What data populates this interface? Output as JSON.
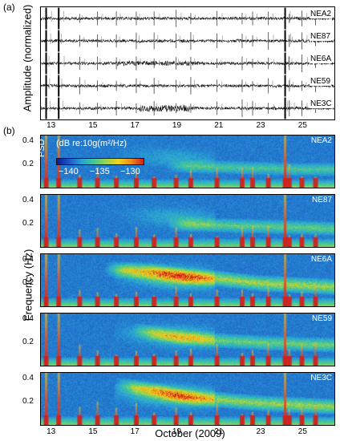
{
  "figure": {
    "panel_a_label": "(a)",
    "panel_b_label": "(b)",
    "panel_a_ylabel": "Amplitude (normalized)",
    "panel_b_ylabel": "Frequency (Hz)",
    "xlabel": "October (2009)",
    "colorbar": {
      "title_prefix": "PSD",
      "title": "(dB re:10g(m²/Hz)",
      "ticks": [
        "−140",
        "−135",
        "−130"
      ],
      "colors": [
        "#0d1b8f",
        "#1f57c7",
        "#29a3d6",
        "#44c79a",
        "#9bd44a",
        "#f1d21f",
        "#f08a1b",
        "#d1201b"
      ]
    }
  },
  "chart_data": [
    {
      "type": "line",
      "title": "",
      "panel": "(a)",
      "ylabel": "Amplitude (normalized)",
      "xlabel": "",
      "xlim": [
        12.5,
        26.5
      ],
      "x_ticks": [
        "13",
        "15",
        "17",
        "19",
        "21",
        "23",
        "25"
      ],
      "series": [
        {
          "name": "NEA2",
          "transient_days": [
            12.75,
            13.35,
            14.35,
            15.2,
            16.1,
            17.05,
            17.9,
            18.95,
            19.65,
            20.9,
            22.1,
            22.6,
            23.35,
            24.15,
            24.35,
            24.95,
            25.6
          ]
        },
        {
          "name": "NE87",
          "transient_days": [
            12.75,
            13.35,
            14.35,
            15.2,
            16.1,
            17.05,
            17.9,
            18.95,
            19.65,
            20.9,
            22.1,
            22.6,
            23.35,
            24.15,
            24.35,
            24.95,
            25.6
          ]
        },
        {
          "name": "NE6A",
          "transient_days": [
            12.75,
            13.35,
            14.35,
            15.2,
            16.1,
            17.05,
            17.9,
            18.95,
            19.65,
            20.9,
            22.1,
            22.6,
            23.35,
            24.15,
            24.35,
            24.95,
            25.6
          ]
        },
        {
          "name": "NE59",
          "transient_days": [
            12.75,
            13.35,
            14.35,
            15.2,
            16.1,
            17.05,
            17.9,
            18.95,
            19.65,
            20.9,
            22.1,
            22.6,
            23.35,
            24.15,
            24.35,
            24.95,
            25.6
          ]
        },
        {
          "name": "NE3C",
          "transient_days": [
            12.75,
            13.35,
            14.35,
            15.2,
            16.1,
            17.05,
            17.9,
            18.95,
            19.65,
            20.9,
            22.1,
            22.6,
            23.35,
            24.15,
            24.35,
            24.95,
            25.6
          ]
        }
      ]
    },
    {
      "type": "heatmap",
      "title": "",
      "panel": "(b)",
      "xlabel": "October (2009)",
      "ylabel": "Frequency (Hz)",
      "xlim": [
        12.5,
        26.5
      ],
      "ylim": [
        0,
        0.45
      ],
      "x_ticks": [
        "13",
        "15",
        "17",
        "19",
        "21",
        "23",
        "25"
      ],
      "y_ticks": [
        "0.2",
        "0.4"
      ],
      "colorbar_range_db": [
        -142,
        -129
      ],
      "stations": [
        {
          "name": "NEA2",
          "microseism_band": [
            {
              "day": 19.0,
              "hz": 0.19
            },
            {
              "day": 21.0,
              "hz": 0.18
            },
            {
              "day": 23.0,
              "hz": 0.17
            },
            {
              "day": 25.0,
              "hz": 0.16
            },
            {
              "day": 26.5,
              "hz": 0.16
            }
          ],
          "microseism_intensity": 0.45,
          "storm_intensity": 0.2
        },
        {
          "name": "NE87",
          "microseism_band": [
            {
              "day": 19.0,
              "hz": 0.2
            },
            {
              "day": 21.0,
              "hz": 0.19
            },
            {
              "day": 23.0,
              "hz": 0.18
            },
            {
              "day": 25.0,
              "hz": 0.17
            },
            {
              "day": 26.5,
              "hz": 0.16
            }
          ],
          "microseism_intensity": 0.55,
          "storm_intensity": 0.25
        },
        {
          "name": "NE6A",
          "microseism_band": [
            {
              "day": 16.0,
              "hz": 0.32
            },
            {
              "day": 18.0,
              "hz": 0.3
            },
            {
              "day": 19.5,
              "hz": 0.26
            },
            {
              "day": 21.0,
              "hz": 0.24
            },
            {
              "day": 23.0,
              "hz": 0.2
            },
            {
              "day": 26.5,
              "hz": 0.17
            }
          ],
          "microseism_intensity": 0.8,
          "storm_intensity": 0.95
        },
        {
          "name": "NE59",
          "microseism_band": [
            {
              "day": 17.3,
              "hz": 0.3
            },
            {
              "day": 19.3,
              "hz": 0.24
            },
            {
              "day": 21.0,
              "hz": 0.22
            },
            {
              "day": 23.0,
              "hz": 0.2
            },
            {
              "day": 26.5,
              "hz": 0.18
            }
          ],
          "microseism_intensity": 0.6,
          "storm_intensity": 0.6
        },
        {
          "name": "NE3C",
          "microseism_band": [
            {
              "day": 16.5,
              "hz": 0.34
            },
            {
              "day": 18.0,
              "hz": 0.3
            },
            {
              "day": 19.5,
              "hz": 0.24
            },
            {
              "day": 21.0,
              "hz": 0.22
            },
            {
              "day": 23.0,
              "hz": 0.19
            },
            {
              "day": 26.5,
              "hz": 0.16
            }
          ],
          "microseism_intensity": 0.75,
          "storm_intensity": 0.85
        }
      ],
      "transient_days": [
        12.75,
        13.35,
        14.35,
        15.2,
        16.1,
        17.05,
        17.9,
        18.95,
        19.65,
        20.9,
        22.1,
        22.6,
        23.35,
        24.15,
        24.35,
        24.95,
        25.6
      ]
    }
  ]
}
